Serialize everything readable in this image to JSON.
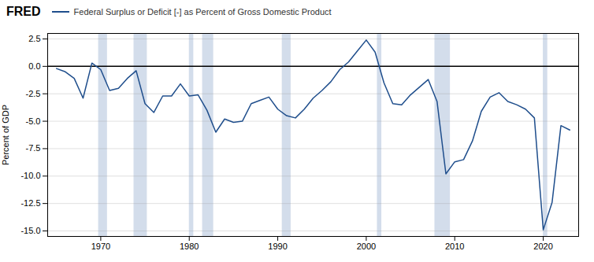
{
  "chart_data": {
    "type": "line",
    "title": "FRED",
    "ylabel": "Percent of GDP",
    "x": [
      1965,
      1966,
      1967,
      1968,
      1969,
      1970,
      1971,
      1972,
      1973,
      1974,
      1975,
      1976,
      1977,
      1978,
      1979,
      1980,
      1981,
      1982,
      1983,
      1984,
      1985,
      1986,
      1987,
      1988,
      1989,
      1990,
      1991,
      1992,
      1993,
      1994,
      1995,
      1996,
      1997,
      1998,
      1999,
      2000,
      2001,
      2002,
      2003,
      2004,
      2005,
      2006,
      2007,
      2008,
      2009,
      2010,
      2011,
      2012,
      2013,
      2014,
      2015,
      2016,
      2017,
      2018,
      2019,
      2020,
      2021,
      2022,
      2023
    ],
    "series": [
      {
        "name": "Federal Surplus or Deficit [-] as Percent of Gross Domestic Product",
        "color": "#1f4e8c",
        "values": [
          -0.2,
          -0.5,
          -1.1,
          -2.9,
          0.3,
          -0.3,
          -2.2,
          -2.0,
          -1.1,
          -0.4,
          -3.4,
          -4.2,
          -2.7,
          -2.7,
          -1.6,
          -2.7,
          -2.6,
          -4.0,
          -6.0,
          -4.8,
          -5.1,
          -5.0,
          -3.4,
          -3.1,
          -2.8,
          -3.9,
          -4.5,
          -4.7,
          -3.9,
          -2.9,
          -2.2,
          -1.4,
          -0.3,
          0.4,
          1.4,
          2.4,
          1.3,
          -1.5,
          -3.4,
          -3.5,
          -2.6,
          -1.9,
          -1.2,
          -3.2,
          -9.8,
          -8.7,
          -8.5,
          -6.8,
          -4.1,
          -2.8,
          -2.4,
          -3.2,
          -3.5,
          -3.9,
          -4.7,
          -14.9,
          -12.4,
          -5.4,
          -5.8
        ]
      }
    ],
    "shaded_bands": [
      [
        1969.75,
        1970.75
      ],
      [
        1973.75,
        1975.25
      ],
      [
        1980.0,
        1980.5
      ],
      [
        1981.5,
        1982.75
      ],
      [
        1990.5,
        1991.5
      ],
      [
        2001.25,
        2001.75
      ],
      [
        2007.75,
        2009.5
      ],
      [
        2020.0,
        2020.5
      ]
    ],
    "xlim": [
      1964,
      2024
    ],
    "xticks": [
      1970,
      1980,
      1990,
      2000,
      2010,
      2020
    ],
    "ylim": [
      -15.5,
      3.0
    ],
    "yticks": [
      2.5,
      {
        "value": 0,
        "label": "0.0"
      },
      -2.5,
      {
        "value": -5,
        "label": "-5.0"
      },
      -7.5,
      {
        "value": -10,
        "label": "-10.0"
      },
      -12.5,
      {
        "value": -15,
        "label": "-15.0"
      }
    ],
    "grid": true,
    "legend": "top"
  }
}
